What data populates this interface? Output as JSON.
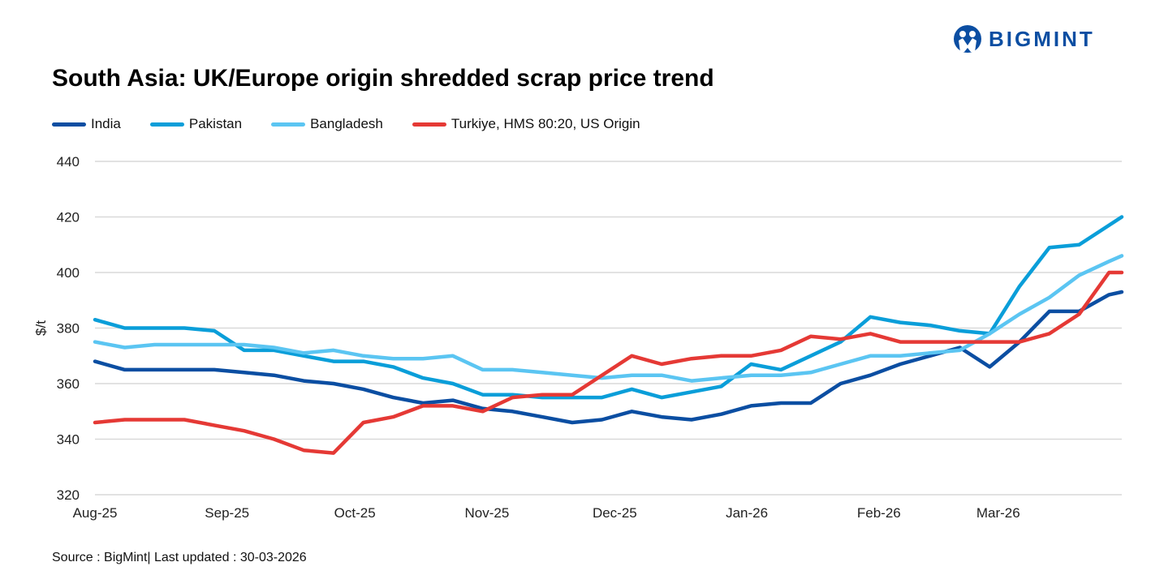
{
  "brand": {
    "logo_text": "BIGMINT"
  },
  "chart_data": {
    "type": "line",
    "title": "South Asia: UK/Europe origin shredded scrap price trend",
    "xlabel": "",
    "ylabel": "$/t",
    "ylim": [
      320,
      440
    ],
    "yticks": [
      320,
      340,
      360,
      380,
      400,
      420,
      440
    ],
    "xlim": [
      "2025-08-01",
      "2026-03-30"
    ],
    "xticks": [
      {
        "date": "2025-08-01",
        "label": "Aug-25"
      },
      {
        "date": "2025-09-01",
        "label": "Sep-25"
      },
      {
        "date": "2025-10-01",
        "label": "Oct-25"
      },
      {
        "date": "2025-11-01",
        "label": "Nov-25"
      },
      {
        "date": "2025-12-01",
        "label": "Dec-25"
      },
      {
        "date": "2026-01-01",
        "label": "Jan-26"
      },
      {
        "date": "2026-02-01",
        "label": "Feb-26"
      },
      {
        "date": "2026-03-01",
        "label": "Mar-26"
      }
    ],
    "grid": "horizontal",
    "legend_position": "top",
    "x": [
      "2025-08-01",
      "2025-08-08",
      "2025-08-15",
      "2025-08-22",
      "2025-08-29",
      "2025-09-05",
      "2025-09-12",
      "2025-09-19",
      "2025-09-26",
      "2025-10-03",
      "2025-10-10",
      "2025-10-17",
      "2025-10-24",
      "2025-10-31",
      "2025-11-07",
      "2025-11-14",
      "2025-11-21",
      "2025-11-28",
      "2025-12-05",
      "2025-12-12",
      "2025-12-19",
      "2025-12-26",
      "2026-01-02",
      "2026-01-09",
      "2026-01-16",
      "2026-01-23",
      "2026-01-30",
      "2026-02-06",
      "2026-02-13",
      "2026-02-20",
      "2026-02-27",
      "2026-03-06",
      "2026-03-13",
      "2026-03-20",
      "2026-03-27",
      "2026-03-30"
    ],
    "series": [
      {
        "name": "India",
        "color": "#0b4ea2",
        "values": [
          368,
          365,
          365,
          365,
          365,
          364,
          363,
          361,
          360,
          358,
          355,
          353,
          354,
          351,
          350,
          348,
          346,
          347,
          350,
          348,
          347,
          349,
          352,
          353,
          353,
          360,
          363,
          367,
          370,
          373,
          366,
          375,
          386,
          386,
          392,
          393
        ]
      },
      {
        "name": "Pakistan",
        "color": "#0a9ed9",
        "values": [
          383,
          380,
          380,
          380,
          379,
          372,
          372,
          370,
          368,
          368,
          366,
          362,
          360,
          356,
          356,
          355,
          355,
          355,
          358,
          355,
          357,
          359,
          367,
          365,
          370,
          375,
          384,
          382,
          381,
          379,
          378,
          395,
          409,
          410,
          417,
          420
        ]
      },
      {
        "name": "Bangladesh",
        "color": "#5bc5f2",
        "values": [
          375,
          373,
          374,
          374,
          374,
          374,
          373,
          371,
          372,
          370,
          369,
          369,
          370,
          365,
          365,
          364,
          363,
          362,
          363,
          363,
          361,
          362,
          363,
          363,
          364,
          367,
          370,
          370,
          371,
          372,
          378,
          385,
          391,
          399,
          404,
          406
        ]
      },
      {
        "name": "Turkiye, HMS 80:20, US Origin",
        "color": "#e53935",
        "values": [
          346,
          347,
          347,
          347,
          345,
          343,
          340,
          336,
          335,
          346,
          348,
          352,
          352,
          350,
          355,
          356,
          356,
          363,
          370,
          367,
          369,
          370,
          370,
          372,
          377,
          376,
          378,
          375,
          375,
          375,
          375,
          375,
          378,
          385,
          400,
          400
        ]
      }
    ]
  },
  "footer": {
    "source": "Source : BigMint| Last updated : 30-03-2026"
  }
}
